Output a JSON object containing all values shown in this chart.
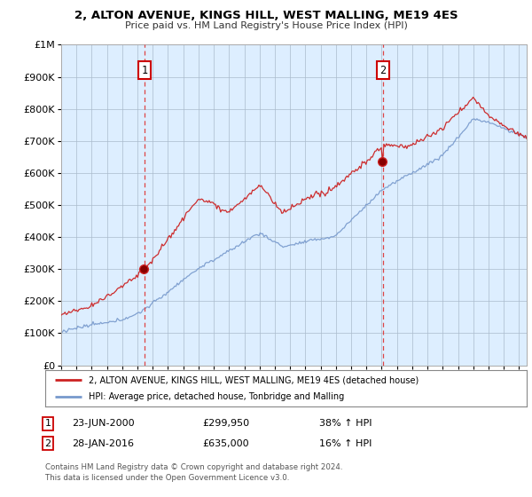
{
  "title": "2, ALTON AVENUE, KINGS HILL, WEST MALLING, ME19 4ES",
  "subtitle": "Price paid vs. HM Land Registry's House Price Index (HPI)",
  "ylim": [
    0,
    1000000
  ],
  "yticks": [
    0,
    100000,
    200000,
    300000,
    400000,
    500000,
    600000,
    700000,
    800000,
    900000,
    1000000
  ],
  "ytick_labels": [
    "£0",
    "£100K",
    "£200K",
    "£300K",
    "£400K",
    "£500K",
    "£600K",
    "£700K",
    "£800K",
    "£900K",
    "£1M"
  ],
  "legend_line1": "2, ALTON AVENUE, KINGS HILL, WEST MALLING, ME19 4ES (detached house)",
  "legend_line2": "HPI: Average price, detached house, Tonbridge and Malling",
  "transaction1_date": "23-JUN-2000",
  "transaction1_price": "£299,950",
  "transaction1_hpi": "38% ↑ HPI",
  "transaction2_date": "28-JAN-2016",
  "transaction2_price": "£635,000",
  "transaction2_hpi": "16% ↑ HPI",
  "footer": "Contains HM Land Registry data © Crown copyright and database right 2024.\nThis data is licensed under the Open Government Licence v3.0.",
  "red_color": "#cc2222",
  "blue_color": "#7799cc",
  "plot_bg": "#ddeeff",
  "dashed_red": "#dd4444",
  "background": "#ffffff",
  "grid_color": "#aabbcc",
  "transaction1_year": 2000.47,
  "transaction2_year": 2016.07,
  "transaction1_value": 299950,
  "transaction2_value": 635000,
  "xmin": 1995,
  "xmax": 2025.5
}
